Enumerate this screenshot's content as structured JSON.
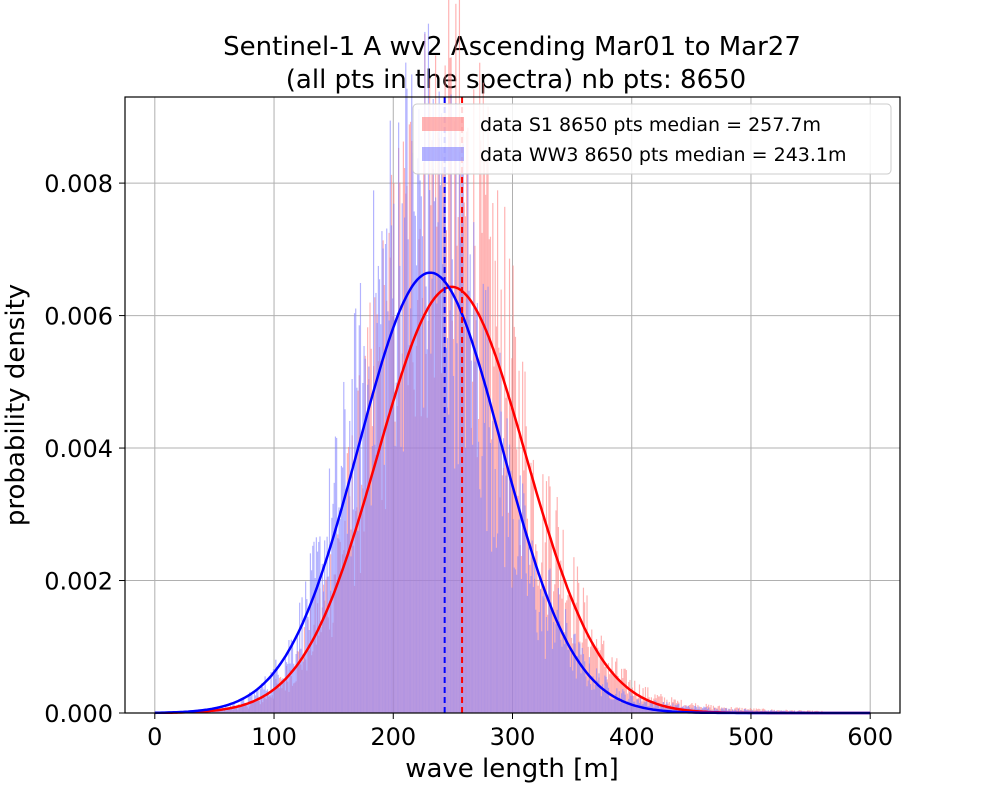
{
  "chart_data": {
    "type": "histogram",
    "title": [
      "Sentinel-1 A wv2 Ascending Mar01 to Mar27",
      "(all pts in the spectra) nb pts: 8650"
    ],
    "xlabel": "wave length [m]",
    "ylabel": "probability density",
    "xlim": [
      -25,
      625
    ],
    "ylim": [
      0,
      0.0093
    ],
    "xticks": [
      0,
      100,
      200,
      300,
      400,
      500,
      600
    ],
    "yticks": [
      "0.000",
      "0.002",
      "0.004",
      "0.006",
      "0.008"
    ],
    "grid": true,
    "legend_position": "upper right",
    "series": [
      {
        "name": "data S1 8650 pts median = 257.7m",
        "color": "#ff0000",
        "hist_color": "#ff8080",
        "hist_alpha": 0.6,
        "fit": {
          "distribution": "normal",
          "mean": 249,
          "std": 62
        },
        "median": 257.7,
        "histogram_range": [
          0,
          600
        ]
      },
      {
        "name": "data WW3 8650 pts median = 243.1m",
        "color": "#0000ff",
        "hist_color": "#8080ff",
        "hist_alpha": 0.6,
        "fit": {
          "distribution": "normal",
          "mean": 231,
          "std": 60
        },
        "median": 243.1,
        "histogram_range": [
          0,
          600
        ]
      }
    ]
  }
}
